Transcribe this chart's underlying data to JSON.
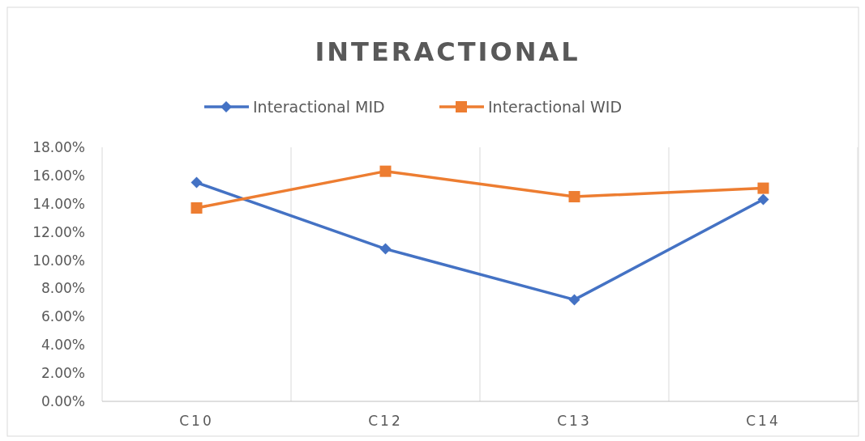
{
  "chart_data": {
    "type": "line",
    "title": "INTERACTIONAL",
    "categories": [
      "C10",
      "C12",
      "C13",
      "C14"
    ],
    "series": [
      {
        "name": "Interactional MID",
        "color": "#4472c4",
        "marker": "diamond",
        "values": [
          15.5,
          10.8,
          7.2,
          14.3
        ]
      },
      {
        "name": "Interactional WID",
        "color": "#ed7d31",
        "marker": "square",
        "values": [
          13.7,
          16.3,
          14.5,
          15.1
        ]
      }
    ],
    "ylim": [
      0,
      18
    ],
    "yticks": [
      {
        "value": 0,
        "label": "0.00%"
      },
      {
        "value": 2,
        "label": "2.00%"
      },
      {
        "value": 4,
        "label": "4.00%"
      },
      {
        "value": 6,
        "label": "6.00%"
      },
      {
        "value": 8,
        "label": "8.00%"
      },
      {
        "value": 10,
        "label": "10.00%"
      },
      {
        "value": 12,
        "label": "12.00%"
      },
      {
        "value": 14,
        "label": "14.00%"
      },
      {
        "value": 16,
        "label": "16.00%"
      },
      {
        "value": 18,
        "label": "18.00%"
      }
    ],
    "grid": "x",
    "legend": "top",
    "line_style": "solid"
  }
}
